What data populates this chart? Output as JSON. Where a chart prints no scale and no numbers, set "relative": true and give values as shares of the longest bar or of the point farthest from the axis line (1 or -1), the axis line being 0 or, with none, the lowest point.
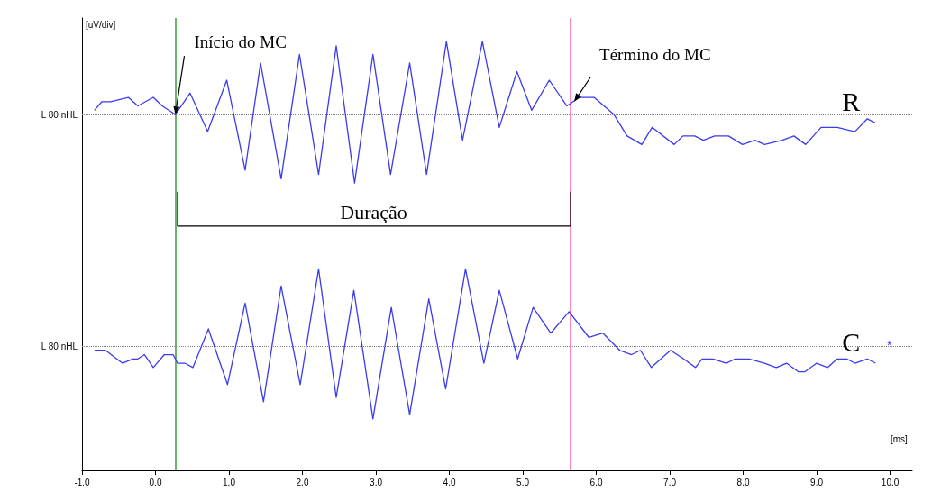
{
  "chart_data": {
    "type": "line",
    "xlabel": "[ms]",
    "ylabel": "[uV/div]",
    "relative": true,
    "grid": false,
    "legend": false,
    "marker": "none",
    "line_style": "solid",
    "xlim": [
      -1,
      10.3
    ],
    "xticks": [
      {
        "value": -1,
        "label": "-1.0"
      },
      {
        "value": 0,
        "label": "0.0"
      },
      {
        "value": 1,
        "label": "1.0"
      },
      {
        "value": 2,
        "label": "2.0"
      },
      {
        "value": 3,
        "label": "3.0"
      },
      {
        "value": 4,
        "label": "4.0"
      },
      {
        "value": 5,
        "label": "5.0"
      },
      {
        "value": 6,
        "label": "6.0"
      },
      {
        "value": 7,
        "label": "7.0"
      },
      {
        "value": 8,
        "label": "8.0"
      },
      {
        "value": 9,
        "label": "9.0"
      },
      {
        "value": 10,
        "label": "10.0"
      }
    ],
    "series": [
      {
        "name": "R",
        "color": "#3b3bef",
        "x": [
          -0.83,
          -0.73,
          -0.61,
          -0.37,
          -0.24,
          -0.03,
          0.09,
          0.27,
          0.47,
          0.71,
          0.97,
          1.22,
          1.43,
          1.71,
          1.96,
          2.22,
          2.46,
          2.71,
          2.96,
          3.2,
          3.46,
          3.69,
          3.96,
          4.18,
          4.45,
          4.68,
          4.92,
          5.12,
          5.36,
          5.6,
          5.77,
          5.97,
          6.24,
          6.42,
          6.62,
          6.76,
          7.06,
          7.18,
          7.34,
          7.46,
          7.61,
          7.8,
          7.99,
          8.16,
          8.29,
          8.53,
          8.69,
          8.85,
          9.06,
          9.28,
          9.52,
          9.69,
          9.8
        ],
        "values": [
          0.84,
          0.86,
          0.86,
          0.87,
          0.85,
          0.87,
          0.85,
          0.83,
          0.88,
          0.79,
          0.91,
          0.7,
          0.95,
          0.68,
          0.97,
          0.69,
          0.99,
          0.67,
          0.97,
          0.69,
          0.95,
          0.69,
          1.0,
          0.77,
          1.0,
          0.8,
          0.93,
          0.84,
          0.91,
          0.85,
          0.87,
          0.87,
          0.83,
          0.78,
          0.76,
          0.8,
          0.76,
          0.78,
          0.78,
          0.77,
          0.78,
          0.78,
          0.76,
          0.77,
          0.76,
          0.77,
          0.78,
          0.76,
          0.8,
          0.8,
          0.79,
          0.82,
          0.81
        ]
      },
      {
        "name": "C",
        "color": "#3b3bef",
        "x": [
          -0.83,
          -0.68,
          -0.45,
          -0.31,
          -0.24,
          -0.15,
          -0.03,
          0.12,
          0.24,
          0.3,
          0.4,
          0.51,
          0.72,
          0.98,
          1.22,
          1.47,
          1.71,
          1.97,
          2.22,
          2.46,
          2.7,
          2.96,
          3.21,
          3.46,
          3.72,
          3.95,
          4.22,
          4.47,
          4.68,
          4.93,
          5.14,
          5.38,
          5.63,
          5.9,
          6.09,
          6.32,
          6.48,
          6.6,
          6.75,
          7.01,
          7.19,
          7.35,
          7.44,
          7.59,
          7.77,
          7.89,
          8.08,
          8.29,
          8.45,
          8.59,
          8.75,
          8.84,
          9.0,
          9.15,
          9.28,
          9.41,
          9.52,
          9.69,
          9.8
        ],
        "values": [
          0.28,
          0.28,
          0.25,
          0.26,
          0.26,
          0.27,
          0.24,
          0.27,
          0.27,
          0.25,
          0.25,
          0.24,
          0.33,
          0.2,
          0.39,
          0.16,
          0.43,
          0.2,
          0.47,
          0.17,
          0.42,
          0.12,
          0.38,
          0.13,
          0.4,
          0.19,
          0.47,
          0.25,
          0.42,
          0.26,
          0.38,
          0.32,
          0.37,
          0.31,
          0.32,
          0.28,
          0.27,
          0.28,
          0.24,
          0.28,
          0.26,
          0.24,
          0.26,
          0.26,
          0.25,
          0.26,
          0.26,
          0.25,
          0.24,
          0.25,
          0.23,
          0.23,
          0.25,
          0.24,
          0.26,
          0.26,
          0.25,
          0.26,
          0.25
        ]
      },
      {
        "type": "line",
        "color": "#000000",
        "x": [
          0.3,
          0.3,
          5.65,
          5.65
        ],
        "values": [
          0.65,
          0.57,
          0.57,
          0.65
        ]
      }
    ],
    "ref_lines": [
      {
        "axis": "x",
        "value": 0.27,
        "label": null,
        "color": "#3a9a3a",
        "line_style": "solid"
      },
      {
        "axis": "x",
        "value": 5.65,
        "label": null,
        "color": "#ff5fa8",
        "line_style": "solid"
      },
      {
        "axis": "y",
        "value": 0.83,
        "label": "L 80 nHL",
        "color": "#808080",
        "line_style": "dotted"
      },
      {
        "axis": "y",
        "value": 0.29,
        "label": "L 80 nHL",
        "color": "#808080",
        "line_style": "dotted"
      }
    ],
    "annotations": [
      {
        "text": "Início do MC",
        "x": 0.27,
        "y": 0.83
      },
      {
        "text": "Término do MC",
        "x": 5.7,
        "y": 0.86
      },
      {
        "text": "Duração",
        "x": 2.97,
        "y": 0.57
      },
      "*"
    ]
  }
}
